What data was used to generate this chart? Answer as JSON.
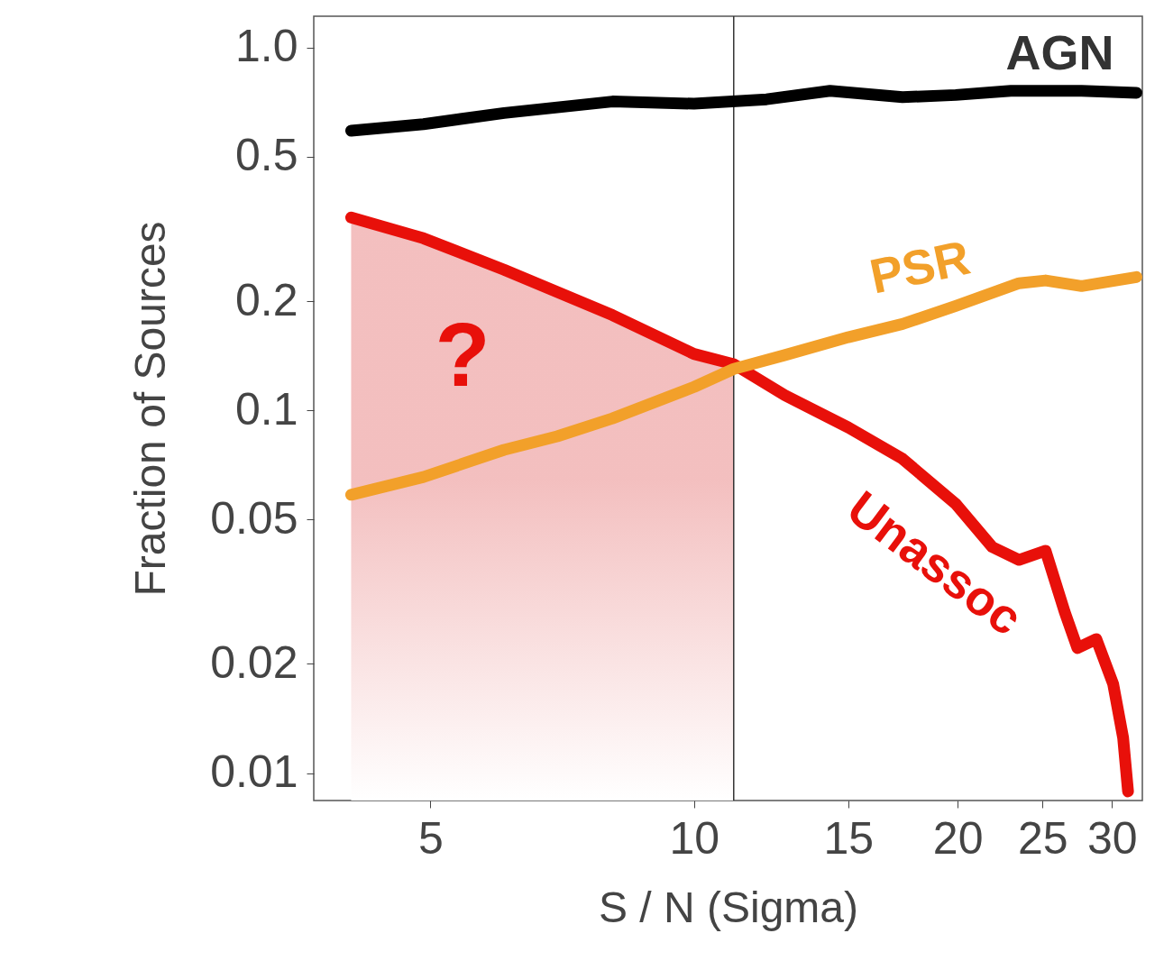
{
  "chart_data": {
    "type": "line",
    "xlabel": "S / N (Sigma)",
    "ylabel": "Fraction of Sources",
    "log": "xy",
    "xlim": [
      3.68,
      32.5
    ],
    "xticks": [
      5,
      10,
      15,
      20,
      25,
      30
    ],
    "ylim": [
      0.0084,
      1.22
    ],
    "yticks": [
      0.01,
      0.02,
      0.05,
      0.1,
      0.2,
      0.5,
      {
        "value": 1,
        "label": "1.0"
      }
    ],
    "marker": "none",
    "line_style": "solid",
    "series": [
      {
        "name": "AGN",
        "color": "#000000",
        "x": [
          4.06,
          4.91,
          6.07,
          8.07,
          10,
          12.1,
          14.3,
          17.3,
          19.9,
          23.0,
          27.7,
          32
        ],
        "values": [
          0.59,
          0.615,
          0.66,
          0.71,
          0.7,
          0.72,
          0.76,
          0.73,
          0.74,
          0.76,
          0.76,
          0.75
        ]
      },
      {
        "name": "Unassoc",
        "color": "#e8100a",
        "x": [
          4.06,
          4.91,
          6.07,
          8.07,
          10,
          11.1,
          12.7,
          15.0,
          17.3,
          19.9,
          21.9,
          23.5,
          25.2,
          26.5,
          27.4,
          28.8,
          30.1,
          30.9,
          31.3
        ],
        "values": [
          0.34,
          0.298,
          0.244,
          0.183,
          0.143,
          0.134,
          0.11,
          0.0897,
          0.0735,
          0.0552,
          0.042,
          0.0387,
          0.041,
          0.0278,
          0.0221,
          0.0234,
          0.0176,
          0.0125,
          0.0089
        ]
      },
      {
        "name": "PSR",
        "color": "#f2a02a",
        "x": [
          4.06,
          4.91,
          6.07,
          6.98,
          8.07,
          10,
          11.1,
          12.7,
          15.0,
          17.3,
          19.9,
          23.5,
          25.2,
          27.7,
          32
        ],
        "values": [
          0.0585,
          0.0655,
          0.0778,
          0.0848,
          0.095,
          0.116,
          0.13,
          0.142,
          0.159,
          0.173,
          0.194,
          0.224,
          0.228,
          0.22,
          0.233
        ]
      }
    ],
    "ref_lines": [
      {
        "axis": "x",
        "value": 11.1,
        "color": "#333333"
      }
    ],
    "bands": [
      {
        "axis": "x",
        "from": 4.06,
        "to": 11.1,
        "color": "#f2b8b8"
      }
    ],
    "annotations": [
      "?"
    ]
  }
}
